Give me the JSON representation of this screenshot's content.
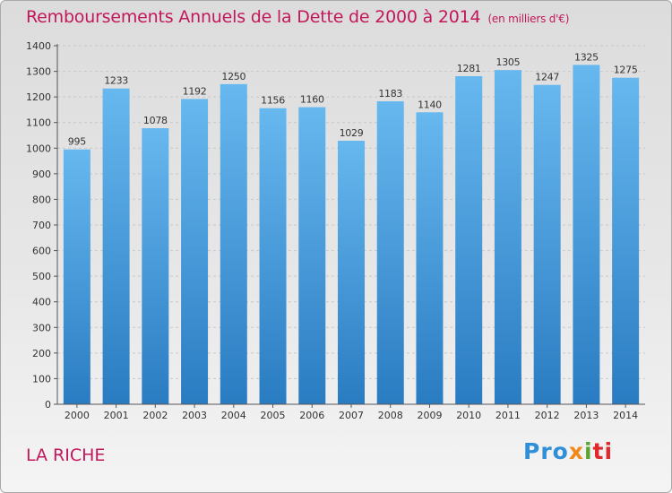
{
  "header": {
    "title": "Remboursements Annuels de la Dette de 2000 à 2014",
    "unit": "(en milliers d'€)"
  },
  "footer": {
    "city": "LA RICHE",
    "logo": [
      "Pro",
      "x",
      "i",
      "ti"
    ]
  },
  "colors": {
    "title": "#c2185b",
    "bar_top": "#67b8ef",
    "bar_bottom": "#2a7cc2",
    "grid": "#c8c8c8",
    "axis": "#555555"
  },
  "chart_data": {
    "type": "bar",
    "title": "Remboursements Annuels de la Dette de 2000 à 2014",
    "xlabel": "",
    "ylabel": "",
    "categories": [
      "2000",
      "2001",
      "2002",
      "2003",
      "2004",
      "2005",
      "2006",
      "2007",
      "2008",
      "2009",
      "2010",
      "2011",
      "2012",
      "2013",
      "2014"
    ],
    "values": [
      995,
      1233,
      1078,
      1192,
      1250,
      1156,
      1160,
      1029,
      1183,
      1140,
      1281,
      1305,
      1247,
      1325,
      1275
    ],
    "ylim": [
      0,
      1400
    ],
    "yticks": [
      0,
      100,
      200,
      300,
      400,
      500,
      600,
      700,
      800,
      900,
      1000,
      1100,
      1200,
      1300,
      1400
    ],
    "grid": true,
    "legend": "none"
  }
}
